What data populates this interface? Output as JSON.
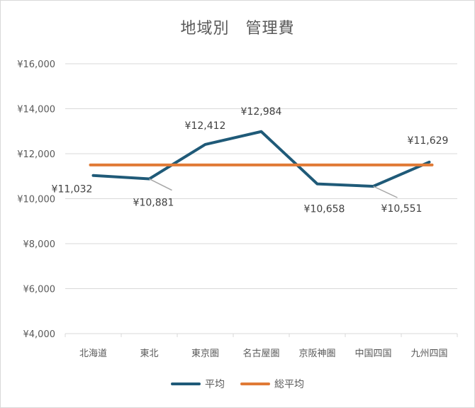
{
  "chart_data": {
    "type": "line",
    "title": "地域別　管理費",
    "categories": [
      "北海道",
      "東北",
      "東京圏",
      "名古屋圏",
      "京阪神圏",
      "中国四国",
      "九州四国"
    ],
    "series": [
      {
        "name": "平均",
        "color": "#1f5a78",
        "values": [
          11032,
          10881,
          12412,
          12984,
          10658,
          10551,
          11629
        ],
        "data_labels": [
          "¥11,032",
          "¥10,881",
          "¥12,412",
          "¥12,984",
          "¥10,658",
          "¥10,551",
          "¥11,629"
        ]
      },
      {
        "name": "総平均",
        "color": "#e07a36",
        "values": [
          11500,
          11500,
          11500,
          11500,
          11500,
          11500,
          11500
        ]
      }
    ],
    "ylim": [
      4000,
      16000
    ],
    "yticks": [
      4000,
      6000,
      8000,
      10000,
      12000,
      14000,
      16000
    ],
    "ytick_labels": [
      "¥4,000",
      "¥6,000",
      "¥8,000",
      "¥10,000",
      "¥12,000",
      "¥14,000",
      "¥16,000"
    ],
    "grid": true,
    "legend_position": "bottom",
    "xlabel": "",
    "ylabel": ""
  }
}
